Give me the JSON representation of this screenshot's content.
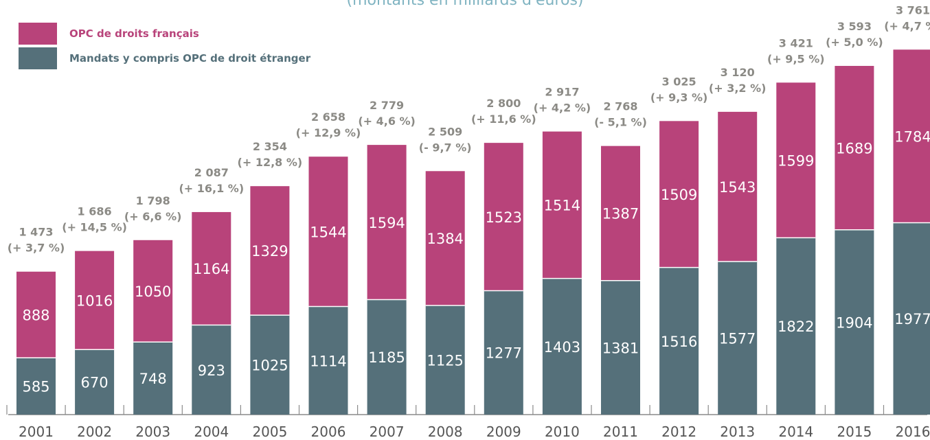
{
  "colors": {
    "opc": "#b8437a",
    "mandats": "#55707a",
    "total": "#8b8a85",
    "axis": "#8a8a8a",
    "year": "#555555",
    "subtitle": "#7fb3c1"
  },
  "subtitle": "(montants en milliards d'euros)",
  "legend": [
    {
      "key": "opc",
      "label": "OPC de droits français",
      "color": "#b8437a"
    },
    {
      "key": "mandats",
      "label": "Mandats y compris OPC de droit étranger",
      "color": "#55707a"
    }
  ],
  "chart_data": {
    "type": "bar",
    "stacked": true,
    "categories": [
      "2001",
      "2002",
      "2003",
      "2004",
      "2005",
      "2006",
      "2007",
      "2008",
      "2009",
      "2010",
      "2011",
      "2012",
      "2013",
      "2014",
      "2015",
      "2016"
    ],
    "series": [
      {
        "name": "Mandats y compris OPC de droit étranger",
        "values": [
          585,
          670,
          748,
          923,
          1025,
          1114,
          1185,
          1125,
          1277,
          1403,
          1381,
          1516,
          1577,
          1822,
          1904,
          1977
        ]
      },
      {
        "name": "OPC de droits français",
        "values": [
          888,
          1016,
          1050,
          1164,
          1329,
          1544,
          1594,
          1384,
          1523,
          1514,
          1387,
          1509,
          1543,
          1599,
          1689,
          1784
        ]
      }
    ],
    "totals": [
      "1 473",
      "1 686",
      "1 798",
      "2 087",
      "2 354",
      "2 658",
      "2 779",
      "2 509",
      "2 800",
      "2 917",
      "2 768",
      "3 025",
      "3 120",
      "3 421",
      "3 593",
      "3 761"
    ],
    "changes": [
      "(+ 3,7 %)",
      "(+ 14,5 %)",
      "(+ 6,6 %)",
      "(+ 16,1 %)",
      "(+ 12,8 %)",
      "(+ 12,9 %)",
      "(+ 4,6 %)",
      "(- 9,7 %)",
      "(+ 11,6 %)",
      "(+ 4,2 %)",
      "(- 5,1 %)",
      "(+ 9,3 %)",
      "(+ 3,2 %)",
      "(+ 9,5 %)",
      "(+ 5,0 %)",
      "(+ 4,7 %)"
    ],
    "ylim": [
      0,
      3761
    ],
    "grid": false,
    "legend_position": "top-left"
  }
}
